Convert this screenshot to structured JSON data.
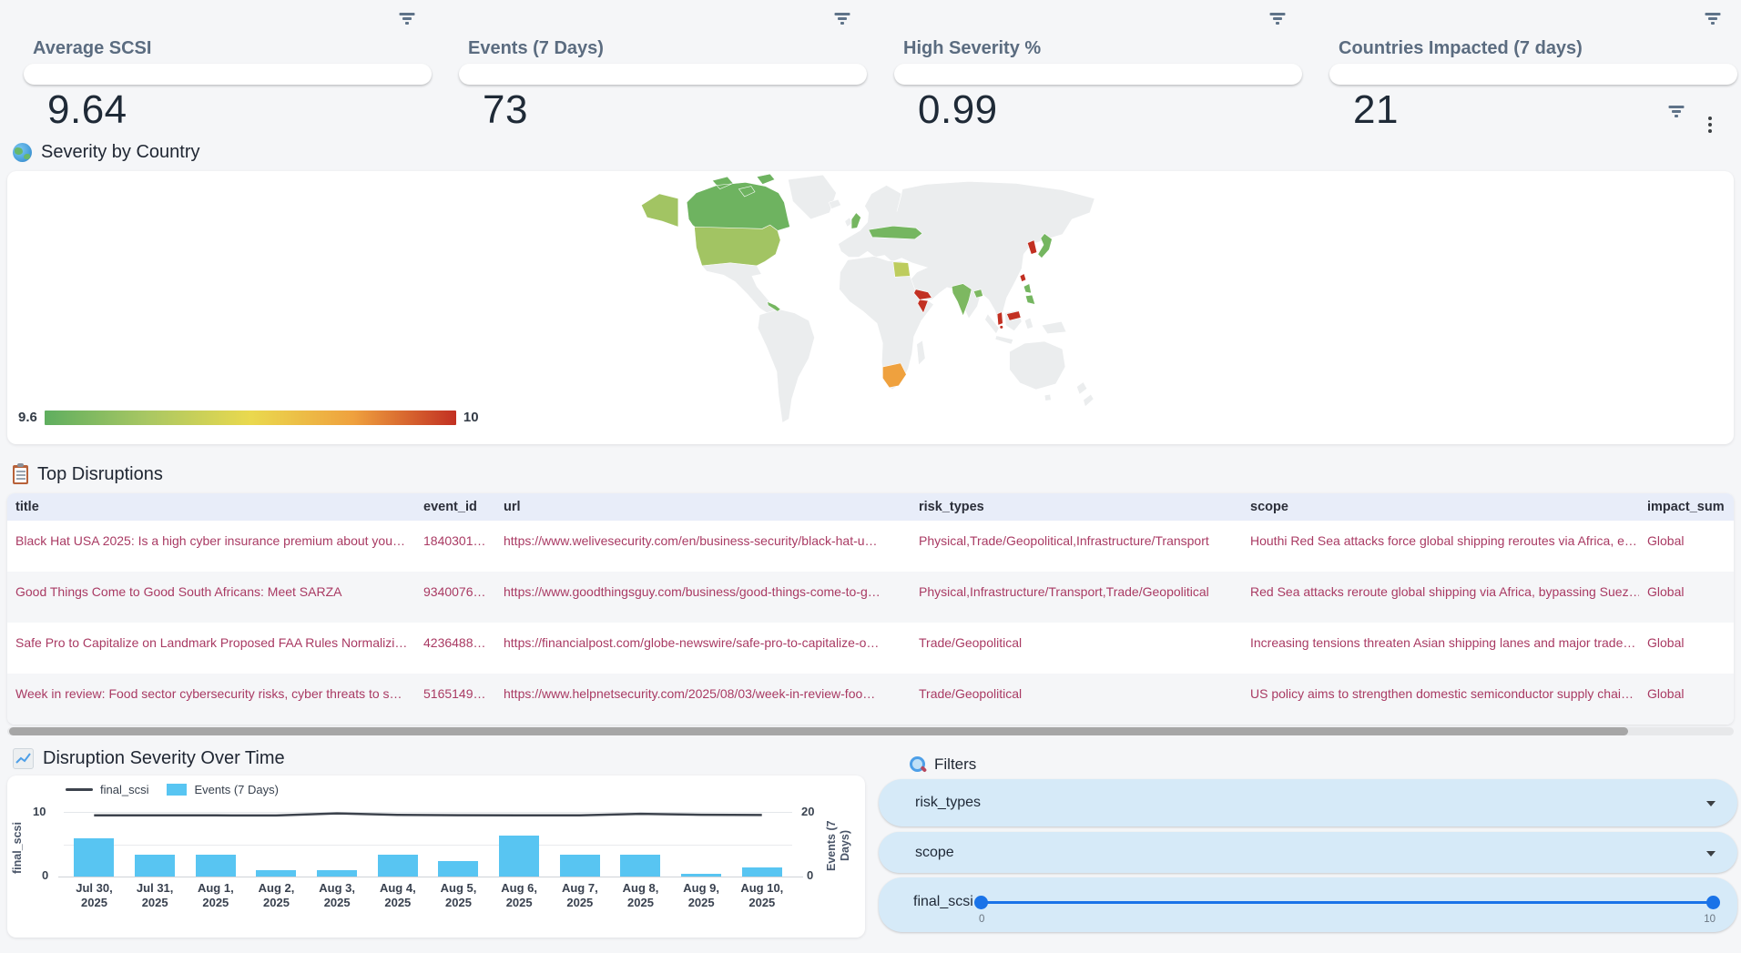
{
  "kpi_cards": [
    {
      "label": "Average SCSI",
      "value": "9.64"
    },
    {
      "label": "Events (7 Days)",
      "value": "73"
    },
    {
      "label": "High Severity %",
      "value": "0.99"
    },
    {
      "label": "Countries Impacted (7 days)",
      "value": "21"
    }
  ],
  "severity_map": {
    "icon": "globe-icon",
    "title": "Severity by Country",
    "scale_min": "9.6",
    "scale_max": "10"
  },
  "top_disruptions": {
    "icon": "clipboard-icon",
    "title": "Top Disruptions",
    "columns": [
      "title",
      "event_id",
      "url",
      "risk_types",
      "scope",
      "impact_sum"
    ],
    "rows": [
      [
        "Black Hat USA 2025: Is a high cyber insurance premium about you…",
        "1840301…",
        "https://www.welivesecurity.com/en/business-security/black-hat-u…",
        "Physical,Trade/Geopolitical,Infrastructure/Transport",
        "Houthi Red Sea attacks force global shipping reroutes via Africa, e…",
        "Global"
      ],
      [
        "Good Things Come to Good South Africans: Meet SARZA",
        "9340076…",
        "https://www.goodthingsguy.com/business/good-things-come-to-g…",
        "Physical,Infrastructure/Transport,Trade/Geopolitical",
        "Red Sea attacks reroute global shipping via Africa, bypassing Suez…",
        "Global"
      ],
      [
        "Safe Pro to Capitalize on Landmark Proposed FAA Rules Normalizi…",
        "4236488…",
        "https://financialpost.com/globe-newswire/safe-pro-to-capitalize-o…",
        "Trade/Geopolitical",
        "Increasing tensions threaten Asian shipping lanes and major trade…",
        "Global"
      ],
      [
        "Week in review: Food sector cybersecurity risks, cyber threats to s…",
        "5165149…",
        "https://www.helpnetsecurity.com/2025/08/03/week-in-review-foo…",
        "Trade/Geopolitical",
        "US policy aims to strengthen domestic semiconductor supply chai…",
        "Global"
      ]
    ]
  },
  "severity_over_time": {
    "icon": "line-chart-icon",
    "title": "Disruption Severity Over Time",
    "legend": [
      "final_scsi",
      "Events (7 Days)"
    ],
    "left_axis": {
      "label": "final_scsi",
      "ticks": [
        "10",
        "0"
      ]
    },
    "right_axis": {
      "label": "Events (7 Days)",
      "ticks": [
        "20",
        "0"
      ]
    }
  },
  "filters_panel": {
    "icon": "search-icon",
    "title": "Filters",
    "dropdowns": [
      {
        "label": "risk_types"
      },
      {
        "label": "scope"
      }
    ],
    "slider": {
      "label": "final_scsi",
      "min": "0",
      "max": "10"
    }
  },
  "colors": {
    "kpi_title": "#5b6c80",
    "kpi_value": "#1f2a37",
    "bar": "#58c5f2",
    "line": "#3d434d",
    "slider_blue": "#1a73e8",
    "table_text": "#a93a63",
    "table_header_bg": "#e8edf9",
    "filter_pill_bg": "#d6eaf8",
    "scale_colors": [
      "#5fae5f",
      "#a9c763",
      "#ead94e",
      "#efa13e",
      "#c23022"
    ]
  },
  "chart_data": [
    {
      "type": "choropleth",
      "title": "Severity by Country",
      "colorbar": {
        "min": 9.6,
        "max": 10,
        "colors": [
          "#5fae5f",
          "#a9c763",
          "#ead94e",
          "#efa13e",
          "#c23022"
        ]
      },
      "countries": [
        {
          "name": "Canada",
          "code": "CA",
          "value": 9.62
        },
        {
          "name": "United States",
          "code": "US",
          "value": 9.69
        },
        {
          "name": "United Kingdom",
          "code": "GB",
          "value": 9.63
        },
        {
          "name": "Germany",
          "code": "DE",
          "value": 9.63
        },
        {
          "name": "Czechia",
          "code": "CZ",
          "value": 9.63
        },
        {
          "name": "Slovakia",
          "code": "SK",
          "value": 9.63
        },
        {
          "name": "Poland",
          "code": "PL",
          "value": 9.63
        },
        {
          "name": "Ukraine",
          "code": "UA",
          "value": 9.63
        },
        {
          "name": "Egypt",
          "code": "EG",
          "value": 9.73
        },
        {
          "name": "South Africa",
          "code": "ZA",
          "value": 9.9
        },
        {
          "name": "Yemen",
          "code": "YE",
          "value": 10
        },
        {
          "name": "Somalia",
          "code": "SO",
          "value": 10
        },
        {
          "name": "India",
          "code": "IN",
          "value": 9.64
        },
        {
          "name": "Bangladesh",
          "code": "BD",
          "value": 9.64
        },
        {
          "name": "Malaysia",
          "code": "MY",
          "value": 10
        },
        {
          "name": "Singapore",
          "code": "SG",
          "value": 10
        },
        {
          "name": "Philippines",
          "code": "PH",
          "value": 9.63
        },
        {
          "name": "Taiwan",
          "code": "TW",
          "value": 10
        },
        {
          "name": "South Korea",
          "code": "KR",
          "value": 10
        },
        {
          "name": "Japan",
          "code": "JP",
          "value": 9.63
        },
        {
          "name": "Panama",
          "code": "PA",
          "value": 9.63
        }
      ]
    },
    {
      "type": "bar+line",
      "title": "Disruption Severity Over Time",
      "categories": [
        "Jul 30, 2025",
        "Jul 31, 2025",
        "Aug 1, 2025",
        "Aug 2, 2025",
        "Aug 3, 2025",
        "Aug 4, 2025",
        "Aug 5, 2025",
        "Aug 6, 2025",
        "Aug 7, 2025",
        "Aug 8, 2025",
        "Aug 9, 2025",
        "Aug 10, 2025"
      ],
      "series": [
        {
          "name": "final_scsi",
          "type": "line",
          "axis": "left",
          "values": [
            9.62,
            9.6,
            9.6,
            9.58,
            9.92,
            9.68,
            9.63,
            9.62,
            9.62,
            9.85,
            9.7,
            9.65
          ]
        },
        {
          "name": "Events (7 Days)",
          "type": "bar",
          "axis": "right",
          "values": [
            12,
            7,
            7,
            2,
            2,
            7,
            5,
            13,
            7,
            7,
            1,
            3
          ]
        }
      ],
      "left_axis": {
        "label": "final_scsi",
        "range": [
          0,
          10
        ]
      },
      "right_axis": {
        "label": "Events (7 Days)",
        "range": [
          0,
          20
        ]
      },
      "legend_position": "top-left",
      "grid": true
    }
  ]
}
